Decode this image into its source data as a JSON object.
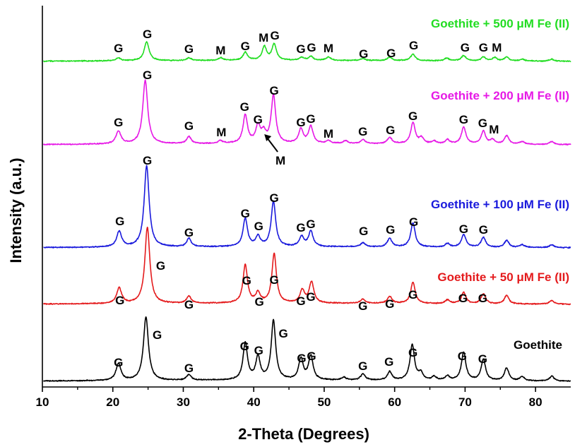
{
  "chart_data": {
    "type": "line",
    "title": "",
    "xlabel": "2-Theta (Degrees)",
    "ylabel": "Intensity (a.u.)",
    "xlim": [
      10,
      85
    ],
    "xticks": [
      "10",
      "20",
      "30",
      "40",
      "50",
      "60",
      "70",
      "80"
    ],
    "grid": false,
    "legend": "inline labels at right of each trace",
    "y_units": "arbitrary, traces vertically offset",
    "series": [
      {
        "name": "Goethite",
        "color": "#000000",
        "peaks": [
          [
            20.8,
            24
          ],
          [
            24.7,
            90
          ],
          [
            30.8,
            8
          ],
          [
            38.8,
            52
          ],
          [
            40.6,
            32
          ],
          [
            42.8,
            84
          ],
          [
            46.7,
            30
          ],
          [
            48.1,
            34
          ],
          [
            52.8,
            4
          ],
          [
            55.5,
            9
          ],
          [
            59.3,
            12
          ],
          [
            62.5,
            50
          ],
          [
            63.7,
            10
          ],
          [
            65.6,
            5
          ],
          [
            67.5,
            6
          ],
          [
            69.8,
            40
          ],
          [
            72.6,
            30
          ],
          [
            75.9,
            18
          ],
          [
            78.1,
            6
          ],
          [
            82.3,
            7
          ]
        ]
      },
      {
        "name": "Goethite + 50 μM Fe (II)",
        "color": "#e41a1c",
        "peaks": [
          [
            20.9,
            22
          ],
          [
            24.9,
            108
          ],
          [
            30.8,
            10
          ],
          [
            38.8,
            54
          ],
          [
            40.6,
            14
          ],
          [
            42.9,
            70
          ],
          [
            46.9,
            18
          ],
          [
            48.2,
            30
          ],
          [
            55.5,
            6
          ],
          [
            59.3,
            10
          ],
          [
            62.6,
            30
          ],
          [
            67.5,
            5
          ],
          [
            69.8,
            16
          ],
          [
            72.6,
            14
          ],
          [
            75.9,
            12
          ],
          [
            82.3,
            5
          ]
        ]
      },
      {
        "name": "Goethite + 100 μM Fe (II)",
        "color": "#1a1adc",
        "peaks": [
          [
            20.9,
            22
          ],
          [
            24.8,
            115
          ],
          [
            30.8,
            12
          ],
          [
            38.8,
            40
          ],
          [
            40.6,
            14
          ],
          [
            42.8,
            64
          ],
          [
            46.8,
            14
          ],
          [
            48.1,
            22
          ],
          [
            55.5,
            6
          ],
          [
            59.3,
            12
          ],
          [
            62.6,
            34
          ],
          [
            67.5,
            5
          ],
          [
            69.8,
            18
          ],
          [
            72.6,
            14
          ],
          [
            75.9,
            10
          ],
          [
            78.1,
            4
          ],
          [
            82.3,
            4
          ]
        ]
      },
      {
        "name": "Goethite + 200 μM Fe (II)",
        "color": "#e619e6",
        "peaks": [
          [
            20.8,
            18
          ],
          [
            24.6,
            90
          ],
          [
            30.8,
            10
          ],
          [
            35.3,
            4
          ],
          [
            38.8,
            40
          ],
          [
            40.6,
            24
          ],
          [
            41.4,
            14
          ],
          [
            42.8,
            68
          ],
          [
            46.7,
            20
          ],
          [
            48.1,
            24
          ],
          [
            50.6,
            4
          ],
          [
            53.0,
            4
          ],
          [
            55.5,
            6
          ],
          [
            59.3,
            9
          ],
          [
            62.6,
            30
          ],
          [
            63.8,
            8
          ],
          [
            65.6,
            4
          ],
          [
            67.5,
            6
          ],
          [
            69.8,
            24
          ],
          [
            72.6,
            18
          ],
          [
            73.9,
            6
          ],
          [
            75.9,
            12
          ],
          [
            78.1,
            4
          ],
          [
            82.3,
            4
          ]
        ]
      },
      {
        "name": "Goethite + 500 μM Fe (II)",
        "color": "#22dd22",
        "peaks": [
          [
            20.8,
            4
          ],
          [
            24.8,
            28
          ],
          [
            30.8,
            4
          ],
          [
            35.3,
            4
          ],
          [
            38.8,
            12
          ],
          [
            41.5,
            20
          ],
          [
            42.9,
            24
          ],
          [
            46.8,
            4
          ],
          [
            48.1,
            6
          ],
          [
            50.6,
            5
          ],
          [
            55.5,
            3
          ],
          [
            59.3,
            5
          ],
          [
            62.6,
            10
          ],
          [
            67.4,
            4
          ],
          [
            69.8,
            8
          ],
          [
            72.6,
            6
          ],
          [
            74.2,
            5
          ],
          [
            75.9,
            6
          ],
          [
            78.1,
            3
          ],
          [
            82.3,
            3
          ]
        ]
      }
    ],
    "peak_annotations": [
      {
        "series": "Goethite",
        "labels": [
          {
            "text": "G",
            "x": 20.8
          },
          {
            "text": "G",
            "x": 26.3
          },
          {
            "text": "G",
            "x": 30.8
          },
          {
            "text": "G",
            "x": 38.7
          },
          {
            "text": "G",
            "x": 40.7
          },
          {
            "text": "G",
            "x": 44.2
          },
          {
            "text": "G",
            "x": 46.8
          },
          {
            "text": "G",
            "x": 48.2
          },
          {
            "text": "G",
            "x": 55.5
          },
          {
            "text": "G",
            "x": 59.2
          },
          {
            "text": "G",
            "x": 62.6
          },
          {
            "text": "G",
            "x": 69.6
          },
          {
            "text": "G",
            "x": 72.5
          }
        ]
      },
      {
        "series": "Goethite + 50 μM Fe (II)",
        "labels": [
          {
            "text": "G",
            "x": 21.0
          },
          {
            "text": "G",
            "x": 26.8
          },
          {
            "text": "G",
            "x": 30.8
          },
          {
            "text": "G",
            "x": 39.0
          },
          {
            "text": "G",
            "x": 40.8
          },
          {
            "text": "G",
            "x": 42.9
          },
          {
            "text": "G",
            "x": 46.7
          },
          {
            "text": "G",
            "x": 48.1
          },
          {
            "text": "G",
            "x": 55.5
          },
          {
            "text": "G",
            "x": 59.3
          },
          {
            "text": "G",
            "x": 62.6
          },
          {
            "text": "G",
            "x": 69.7
          },
          {
            "text": "G",
            "x": 72.5
          }
        ]
      },
      {
        "series": "Goethite + 100 μM Fe (II)",
        "labels": [
          {
            "text": "G",
            "x": 21.0
          },
          {
            "text": "G",
            "x": 24.9
          },
          {
            "text": "G",
            "x": 30.8
          },
          {
            "text": "G",
            "x": 38.8
          },
          {
            "text": "G",
            "x": 40.7
          },
          {
            "text": "G",
            "x": 42.9
          },
          {
            "text": "G",
            "x": 46.7
          },
          {
            "text": "G",
            "x": 48.1
          },
          {
            "text": "G",
            "x": 55.6
          },
          {
            "text": "G",
            "x": 59.4
          },
          {
            "text": "G",
            "x": 62.7
          },
          {
            "text": "G",
            "x": 69.8
          },
          {
            "text": "G",
            "x": 72.6
          }
        ]
      },
      {
        "series": "Goethite + 200 μM Fe (II)",
        "labels": [
          {
            "text": "G",
            "x": 20.8
          },
          {
            "text": "G",
            "x": 24.9
          },
          {
            "text": "G",
            "x": 30.8
          },
          {
            "text": "M",
            "x": 35.4
          },
          {
            "text": "G",
            "x": 38.7
          },
          {
            "text": "G",
            "x": 40.6
          },
          {
            "text": "G",
            "x": 42.9
          },
          {
            "text": "G",
            "x": 46.7
          },
          {
            "text": "G",
            "x": 48.1
          },
          {
            "text": "M",
            "x": 50.6
          },
          {
            "text": "G",
            "x": 55.5
          },
          {
            "text": "G",
            "x": 59.4
          },
          {
            "text": "G",
            "x": 62.6
          },
          {
            "text": "G",
            "x": 69.8
          },
          {
            "text": "G",
            "x": 72.5
          },
          {
            "text": "M",
            "x": 74.1
          },
          {
            "text": "M",
            "x": 43.8,
            "arrow_to": 41.5
          }
        ]
      },
      {
        "series": "Goethite + 500 μM Fe (II)",
        "labels": [
          {
            "text": "G",
            "x": 20.8
          },
          {
            "text": "G",
            "x": 24.9
          },
          {
            "text": "G",
            "x": 30.8
          },
          {
            "text": "M",
            "x": 35.3
          },
          {
            "text": "G",
            "x": 38.8
          },
          {
            "text": "M",
            "x": 41.4
          },
          {
            "text": "G",
            "x": 43.0
          },
          {
            "text": "G",
            "x": 46.7
          },
          {
            "text": "G",
            "x": 48.2
          },
          {
            "text": "M",
            "x": 50.6
          },
          {
            "text": "G",
            "x": 55.6
          },
          {
            "text": "G",
            "x": 59.5
          },
          {
            "text": "G",
            "x": 62.7
          },
          {
            "text": "G",
            "x": 70.0
          },
          {
            "text": "G",
            "x": 72.6
          },
          {
            "text": "M",
            "x": 74.5
          }
        ]
      }
    ]
  }
}
